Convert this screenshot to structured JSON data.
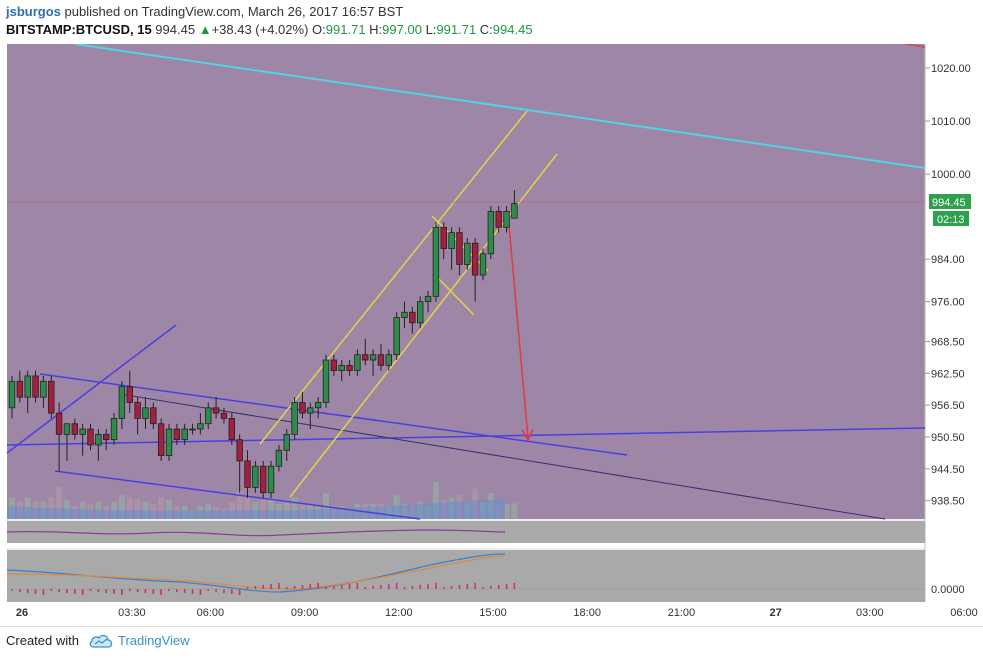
{
  "header": {
    "author": "jsburgos",
    "published_text": "published on TradingView.com, March 26, 2017 16:57 BST",
    "symbol": "BITSTAMP:BTCUSD",
    "interval": ", 15",
    "last": "994.45",
    "change": "+38.43 (+4.02%)",
    "o_label": "O:",
    "o_value": "991.71",
    "h_label": "H:",
    "h_value": "997.00",
    "l_label": "L:",
    "l_value": "991.71",
    "c_label": "C:",
    "c_value": "994.45",
    "up_arrow": "▲"
  },
  "price_badge": {
    "price": "994.45",
    "countdown": "02:13"
  },
  "footer": {
    "created_with": "Created with",
    "brand": "TradingView",
    "logo_icon": "tradingview-cloud-icon"
  },
  "colors": {
    "panel_bg": "#9e87a6",
    "bull": "#2e8c4a",
    "bear": "#a3203f",
    "channel": "#e5d24a",
    "trend_blue": "#4a3fe0",
    "cyan": "#4fd4e8",
    "arrow": "#e03c3c",
    "badge": "#2ea14e"
  },
  "chart_data": {
    "type": "candlestick",
    "symbol": "BITSTAMP:BTCUSD",
    "interval": "15",
    "y_ticks": [
      "1020.00",
      "1010.00",
      "1000.00",
      "984.00",
      "976.00",
      "968.50",
      "962.50",
      "956.50",
      "950.50",
      "944.50",
      "938.50"
    ],
    "x_ticks": [
      "26",
      "03:30",
      "06:00",
      "09:00",
      "12:00",
      "15:00",
      "18:00",
      "21:00",
      "27",
      "03:00",
      "06:00"
    ],
    "osc_ticks": [
      "0.0000"
    ],
    "ylim": [
      936.5,
      1025
    ],
    "last_price": 994.45,
    "candles": [
      {
        "t": -0.6,
        "o": 956,
        "h": 962,
        "l": 954,
        "c": 961
      },
      {
        "t": -0.3,
        "o": 961,
        "h": 963,
        "l": 957,
        "c": 958
      },
      {
        "t": 0.0,
        "o": 958,
        "h": 963,
        "l": 955,
        "c": 962
      },
      {
        "t": 0.25,
        "o": 962,
        "h": 963,
        "l": 957,
        "c": 958
      },
      {
        "t": 0.5,
        "o": 958,
        "h": 962,
        "l": 956,
        "c": 961
      },
      {
        "t": 0.75,
        "o": 961,
        "h": 962,
        "l": 954,
        "c": 955
      },
      {
        "t": 1.0,
        "o": 955,
        "h": 957,
        "l": 944,
        "c": 951
      },
      {
        "t": 1.25,
        "o": 951,
        "h": 953,
        "l": 946,
        "c": 953
      },
      {
        "t": 1.5,
        "o": 953,
        "h": 954,
        "l": 950,
        "c": 951
      },
      {
        "t": 1.75,
        "o": 951,
        "h": 953,
        "l": 947,
        "c": 952
      },
      {
        "t": 2.0,
        "o": 952,
        "h": 953,
        "l": 948,
        "c": 949
      },
      {
        "t": 2.25,
        "o": 949,
        "h": 952,
        "l": 946,
        "c": 951
      },
      {
        "t": 2.5,
        "o": 951,
        "h": 952,
        "l": 948,
        "c": 950
      },
      {
        "t": 2.75,
        "o": 950,
        "h": 955,
        "l": 949,
        "c": 954
      },
      {
        "t": 3.0,
        "o": 954,
        "h": 961,
        "l": 952,
        "c": 960
      },
      {
        "t": 3.25,
        "o": 960,
        "h": 963,
        "l": 955,
        "c": 957
      },
      {
        "t": 3.5,
        "o": 957,
        "h": 958,
        "l": 951,
        "c": 954
      },
      {
        "t": 3.75,
        "o": 954,
        "h": 958,
        "l": 952,
        "c": 956
      },
      {
        "t": 4.0,
        "o": 956,
        "h": 957,
        "l": 952,
        "c": 953
      },
      {
        "t": 4.25,
        "o": 953,
        "h": 954,
        "l": 946,
        "c": 947
      },
      {
        "t": 4.5,
        "o": 947,
        "h": 953,
        "l": 946,
        "c": 952
      },
      {
        "t": 4.75,
        "o": 952,
        "h": 953,
        "l": 949,
        "c": 950
      },
      {
        "t": 5.0,
        "o": 950,
        "h": 953,
        "l": 949,
        "c": 952
      },
      {
        "t": 5.25,
        "o": 952,
        "h": 953,
        "l": 951,
        "c": 952
      },
      {
        "t": 5.5,
        "o": 952,
        "h": 955,
        "l": 951,
        "c": 953
      },
      {
        "t": 5.75,
        "o": 953,
        "h": 957,
        "l": 952,
        "c": 956
      },
      {
        "t": 6.0,
        "o": 956,
        "h": 958,
        "l": 954,
        "c": 955
      },
      {
        "t": 6.25,
        "o": 955,
        "h": 956,
        "l": 953,
        "c": 954
      },
      {
        "t": 6.5,
        "o": 954,
        "h": 955,
        "l": 949,
        "c": 950
      },
      {
        "t": 6.75,
        "o": 950,
        "h": 951,
        "l": 940,
        "c": 946
      },
      {
        "t": 7.0,
        "o": 946,
        "h": 948,
        "l": 939,
        "c": 941
      },
      {
        "t": 7.25,
        "o": 941,
        "h": 946,
        "l": 940,
        "c": 945
      },
      {
        "t": 7.5,
        "o": 945,
        "h": 946,
        "l": 939,
        "c": 940
      },
      {
        "t": 7.75,
        "o": 940,
        "h": 946,
        "l": 939,
        "c": 945
      },
      {
        "t": 8.0,
        "o": 945,
        "h": 949,
        "l": 944,
        "c": 948
      },
      {
        "t": 8.25,
        "o": 948,
        "h": 952,
        "l": 946,
        "c": 951
      },
      {
        "t": 8.5,
        "o": 951,
        "h": 958,
        "l": 950,
        "c": 957
      },
      {
        "t": 8.75,
        "o": 957,
        "h": 959,
        "l": 954,
        "c": 955
      },
      {
        "t": 9.0,
        "o": 955,
        "h": 957,
        "l": 952,
        "c": 956
      },
      {
        "t": 9.25,
        "o": 956,
        "h": 958,
        "l": 954,
        "c": 957
      },
      {
        "t": 9.5,
        "o": 957,
        "h": 966,
        "l": 956,
        "c": 965
      },
      {
        "t": 9.75,
        "o": 965,
        "h": 966,
        "l": 962,
        "c": 963
      },
      {
        "t": 10.0,
        "o": 963,
        "h": 965,
        "l": 961,
        "c": 964
      },
      {
        "t": 10.25,
        "o": 964,
        "h": 965,
        "l": 962,
        "c": 963
      },
      {
        "t": 10.5,
        "o": 963,
        "h": 967,
        "l": 962,
        "c": 966
      },
      {
        "t": 10.75,
        "o": 966,
        "h": 969,
        "l": 964,
        "c": 965
      },
      {
        "t": 11.0,
        "o": 965,
        "h": 967,
        "l": 962,
        "c": 966
      },
      {
        "t": 11.25,
        "o": 966,
        "h": 968,
        "l": 963,
        "c": 964
      },
      {
        "t": 11.5,
        "o": 964,
        "h": 967,
        "l": 963,
        "c": 966
      },
      {
        "t": 11.75,
        "o": 966,
        "h": 974,
        "l": 965,
        "c": 973
      },
      {
        "t": 12.0,
        "o": 973,
        "h": 976,
        "l": 971,
        "c": 974
      },
      {
        "t": 12.25,
        "o": 974,
        "h": 975,
        "l": 970,
        "c": 972
      },
      {
        "t": 12.5,
        "o": 972,
        "h": 977,
        "l": 971,
        "c": 976
      },
      {
        "t": 12.75,
        "o": 976,
        "h": 978,
        "l": 974,
        "c": 977
      },
      {
        "t": 13.0,
        "o": 977,
        "h": 991,
        "l": 976,
        "c": 990
      },
      {
        "t": 13.25,
        "o": 990,
        "h": 991,
        "l": 984,
        "c": 986
      },
      {
        "t": 13.5,
        "o": 986,
        "h": 990,
        "l": 982,
        "c": 989
      },
      {
        "t": 13.75,
        "o": 989,
        "h": 990,
        "l": 981,
        "c": 983
      },
      {
        "t": 14.0,
        "o": 983,
        "h": 988,
        "l": 982,
        "c": 987
      },
      {
        "t": 14.25,
        "o": 987,
        "h": 988,
        "l": 976,
        "c": 981
      },
      {
        "t": 14.5,
        "o": 981,
        "h": 986,
        "l": 980,
        "c": 985
      },
      {
        "t": 14.75,
        "o": 985,
        "h": 994,
        "l": 984,
        "c": 993
      },
      {
        "t": 15.0,
        "o": 993,
        "h": 994,
        "l": 989,
        "c": 990
      },
      {
        "t": 15.25,
        "o": 990,
        "h": 994,
        "l": 989,
        "c": 993
      },
      {
        "t": 15.5,
        "o": 991.71,
        "h": 997,
        "l": 991.71,
        "c": 994.45
      }
    ]
  }
}
